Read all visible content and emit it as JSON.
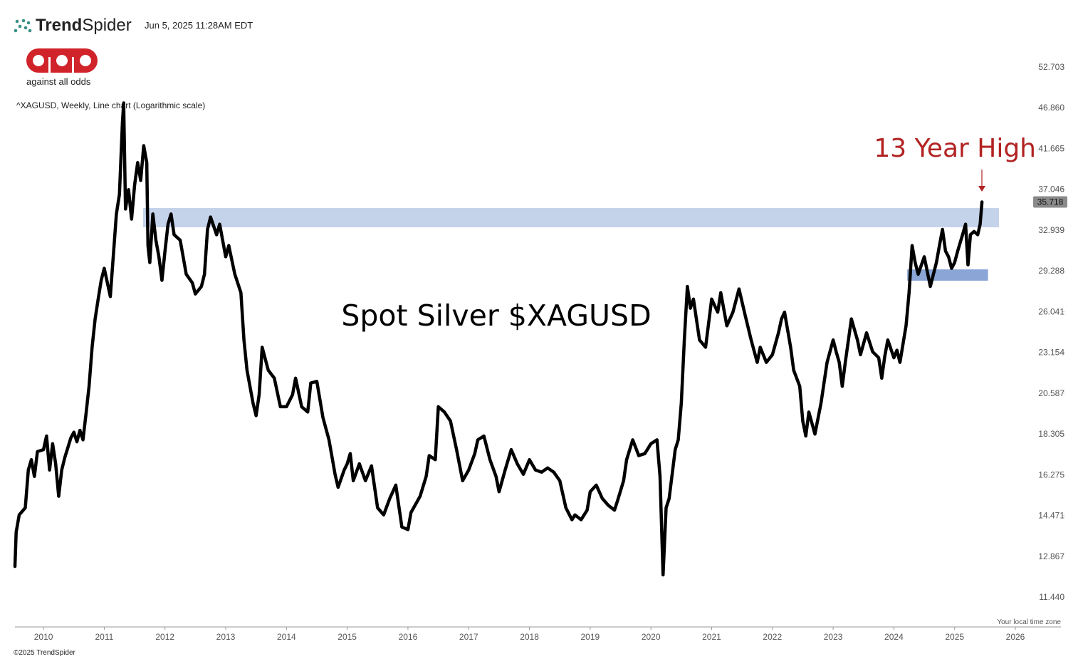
{
  "header": {
    "brand": [
      "Trend",
      "Spider"
    ],
    "timestamp": "Jun 5, 2025 11:28AM EDT",
    "logo_text": "against all odds"
  },
  "footer": {
    "copyright": "©2025 TrendSpider",
    "timezone": "Your local time zone"
  },
  "chart_data": {
    "type": "line",
    "log_scale": true,
    "title": "Spot Silver $XAGUSD",
    "subtitle": "^XAGUSD, Weekly, Line chart (Logarithmic scale)",
    "annotations": [
      "13 Year High"
    ],
    "color": "#000000",
    "xlim": [
      2009.53,
      2026.75
    ],
    "xticks": [
      2010,
      2011,
      2012,
      2013,
      2014,
      2015,
      2016,
      2017,
      2018,
      2019,
      2020,
      2021,
      2022,
      2023,
      2024,
      2025,
      2026
    ],
    "ylim": [
      10.5,
      56.5
    ],
    "yticks": [
      {
        "value": 11.44,
        "label": "11.440"
      },
      12.867,
      14.471,
      16.275,
      18.305,
      20.587,
      23.154,
      26.041,
      29.288,
      32.939,
      37.046,
      41.665,
      {
        "value": 46.86,
        "label": "46.860"
      },
      52.703
    ],
    "bands": [
      {
        "y": [
          33.2,
          35.1
        ],
        "x": [
          2011.64,
          2025.73
        ],
        "color": "#c5d3ea"
      },
      {
        "y": [
          28.47,
          29.41
        ],
        "x": [
          2024.22,
          2025.55
        ],
        "color": "#8aa5d6"
      }
    ],
    "x": [
      2009.53,
      2009.55,
      2009.6,
      2009.7,
      2009.75,
      2009.8,
      2009.85,
      2009.9,
      2010.0,
      2010.05,
      2010.1,
      2010.15,
      2010.2,
      2010.25,
      2010.3,
      2010.35,
      2010.45,
      2010.5,
      2010.55,
      2010.6,
      2010.65,
      2010.7,
      2010.75,
      2010.8,
      2010.85,
      2010.9,
      2010.95,
      2011.0,
      2011.1,
      2011.2,
      2011.25,
      2011.3,
      2011.32,
      2011.35,
      2011.4,
      2011.45,
      2011.5,
      2011.55,
      2011.6,
      2011.65,
      2011.7,
      2011.72,
      2011.75,
      2011.8,
      2011.85,
      2011.9,
      2011.95,
      2012.0,
      2012.05,
      2012.1,
      2012.15,
      2012.25,
      2012.35,
      2012.45,
      2012.5,
      2012.6,
      2012.65,
      2012.7,
      2012.75,
      2012.85,
      2012.9,
      2013.0,
      2013.05,
      2013.15,
      2013.25,
      2013.3,
      2013.35,
      2013.45,
      2013.5,
      2013.55,
      2013.6,
      2013.7,
      2013.8,
      2013.9,
      2014.0,
      2014.1,
      2014.15,
      2014.25,
      2014.35,
      2014.4,
      2014.5,
      2014.6,
      2014.7,
      2014.8,
      2014.85,
      2014.95,
      2015.0,
      2015.05,
      2015.1,
      2015.2,
      2015.3,
      2015.4,
      2015.5,
      2015.6,
      2015.7,
      2015.8,
      2015.9,
      2016.0,
      2016.05,
      2016.2,
      2016.3,
      2016.35,
      2016.45,
      2016.5,
      2016.6,
      2016.7,
      2016.8,
      2016.9,
      2017.0,
      2017.1,
      2017.15,
      2017.25,
      2017.35,
      2017.45,
      2017.5,
      2017.6,
      2017.7,
      2017.8,
      2017.9,
      2018.0,
      2018.1,
      2018.2,
      2018.3,
      2018.4,
      2018.5,
      2018.6,
      2018.7,
      2018.75,
      2018.85,
      2018.95,
      2019.0,
      2019.1,
      2019.2,
      2019.3,
      2019.4,
      2019.45,
      2019.55,
      2019.6,
      2019.7,
      2019.8,
      2019.9,
      2020.0,
      2020.1,
      2020.15,
      2020.2,
      2020.25,
      2020.3,
      2020.4,
      2020.45,
      2020.5,
      2020.55,
      2020.6,
      2020.65,
      2020.7,
      2020.8,
      2020.9,
      2021.0,
      2021.1,
      2021.15,
      2021.25,
      2021.35,
      2021.45,
      2021.55,
      2021.65,
      2021.75,
      2021.8,
      2021.9,
      2022.0,
      2022.1,
      2022.15,
      2022.2,
      2022.3,
      2022.35,
      2022.45,
      2022.5,
      2022.55,
      2022.6,
      2022.7,
      2022.8,
      2022.9,
      2023.0,
      2023.05,
      2023.1,
      2023.15,
      2023.2,
      2023.3,
      2023.4,
      2023.45,
      2023.55,
      2023.65,
      2023.75,
      2023.8,
      2023.85,
      2023.9,
      2024.0,
      2024.05,
      2024.1,
      2024.2,
      2024.25,
      2024.3,
      2024.35,
      2024.4,
      2024.5,
      2024.6,
      2024.7,
      2024.75,
      2024.8,
      2024.85,
      2024.9,
      2024.95,
      2025.0,
      2025.05,
      2025.12,
      2025.18,
      2025.22,
      2025.26,
      2025.32,
      2025.38,
      2025.42,
      2025.45
    ],
    "values": [
      12.5,
      13.8,
      14.5,
      14.8,
      16.5,
      17.0,
      16.2,
      17.4,
      17.5,
      18.2,
      16.5,
      17.8,
      16.8,
      15.3,
      16.5,
      17.1,
      18.1,
      18.4,
      17.9,
      18.5,
      18.0,
      19.4,
      21.0,
      23.5,
      25.5,
      27.0,
      28.5,
      29.5,
      27.2,
      34.5,
      36.5,
      45.0,
      47.5,
      35.0,
      37.0,
      34.0,
      37.5,
      40.0,
      38.0,
      42.0,
      40.0,
      31.5,
      30.0,
      34.5,
      32.0,
      30.5,
      28.5,
      31.0,
      33.5,
      34.5,
      32.5,
      32.0,
      29.0,
      28.3,
      27.4,
      28.0,
      29.0,
      33.0,
      34.2,
      32.5,
      33.5,
      30.5,
      31.5,
      29.0,
      27.5,
      24.0,
      22.0,
      20.0,
      19.3,
      20.5,
      23.5,
      22.0,
      21.5,
      19.8,
      19.8,
      20.5,
      21.5,
      19.8,
      19.5,
      21.2,
      21.3,
      19.2,
      18.0,
      16.3,
      15.7,
      16.5,
      16.8,
      17.3,
      16.0,
      16.8,
      16.0,
      16.7,
      14.8,
      14.5,
      15.2,
      15.8,
      14.0,
      13.9,
      14.6,
      15.3,
      16.2,
      17.2,
      17.0,
      19.8,
      19.5,
      19.0,
      17.5,
      16.0,
      16.5,
      17.3,
      18.0,
      18.2,
      17.0,
      16.2,
      15.5,
      16.5,
      17.5,
      16.8,
      16.3,
      17.0,
      16.5,
      16.4,
      16.6,
      16.4,
      16.0,
      14.8,
      14.3,
      14.5,
      14.3,
      14.7,
      15.5,
      15.8,
      15.2,
      14.9,
      14.7,
      15.1,
      16.0,
      17.0,
      18.0,
      17.2,
      17.3,
      17.8,
      18.0,
      16.2,
      12.2,
      14.8,
      15.2,
      17.5,
      18.0,
      20.0,
      24.0,
      28.0,
      26.3,
      27.0,
      24.0,
      23.5,
      27.0,
      26.0,
      27.5,
      25.0,
      26.0,
      27.8,
      25.8,
      24.0,
      22.5,
      23.5,
      22.5,
      23.0,
      24.5,
      25.5,
      26.0,
      23.5,
      22.0,
      21.0,
      19.0,
      18.2,
      19.5,
      18.3,
      20.0,
      22.5,
      24.0,
      23.2,
      22.5,
      21.0,
      22.5,
      25.5,
      24.0,
      23.0,
      24.5,
      23.2,
      22.8,
      21.5,
      22.9,
      24.0,
      22.8,
      23.3,
      22.5,
      25.0,
      27.5,
      31.5,
      30.0,
      29.0,
      30.5,
      28.0,
      30.0,
      31.5,
      33.0,
      31.0,
      30.5,
      29.5,
      30.0,
      31.0,
      32.3,
      33.5,
      29.8,
      32.5,
      32.8,
      32.5,
      33.5,
      35.718
    ]
  }
}
